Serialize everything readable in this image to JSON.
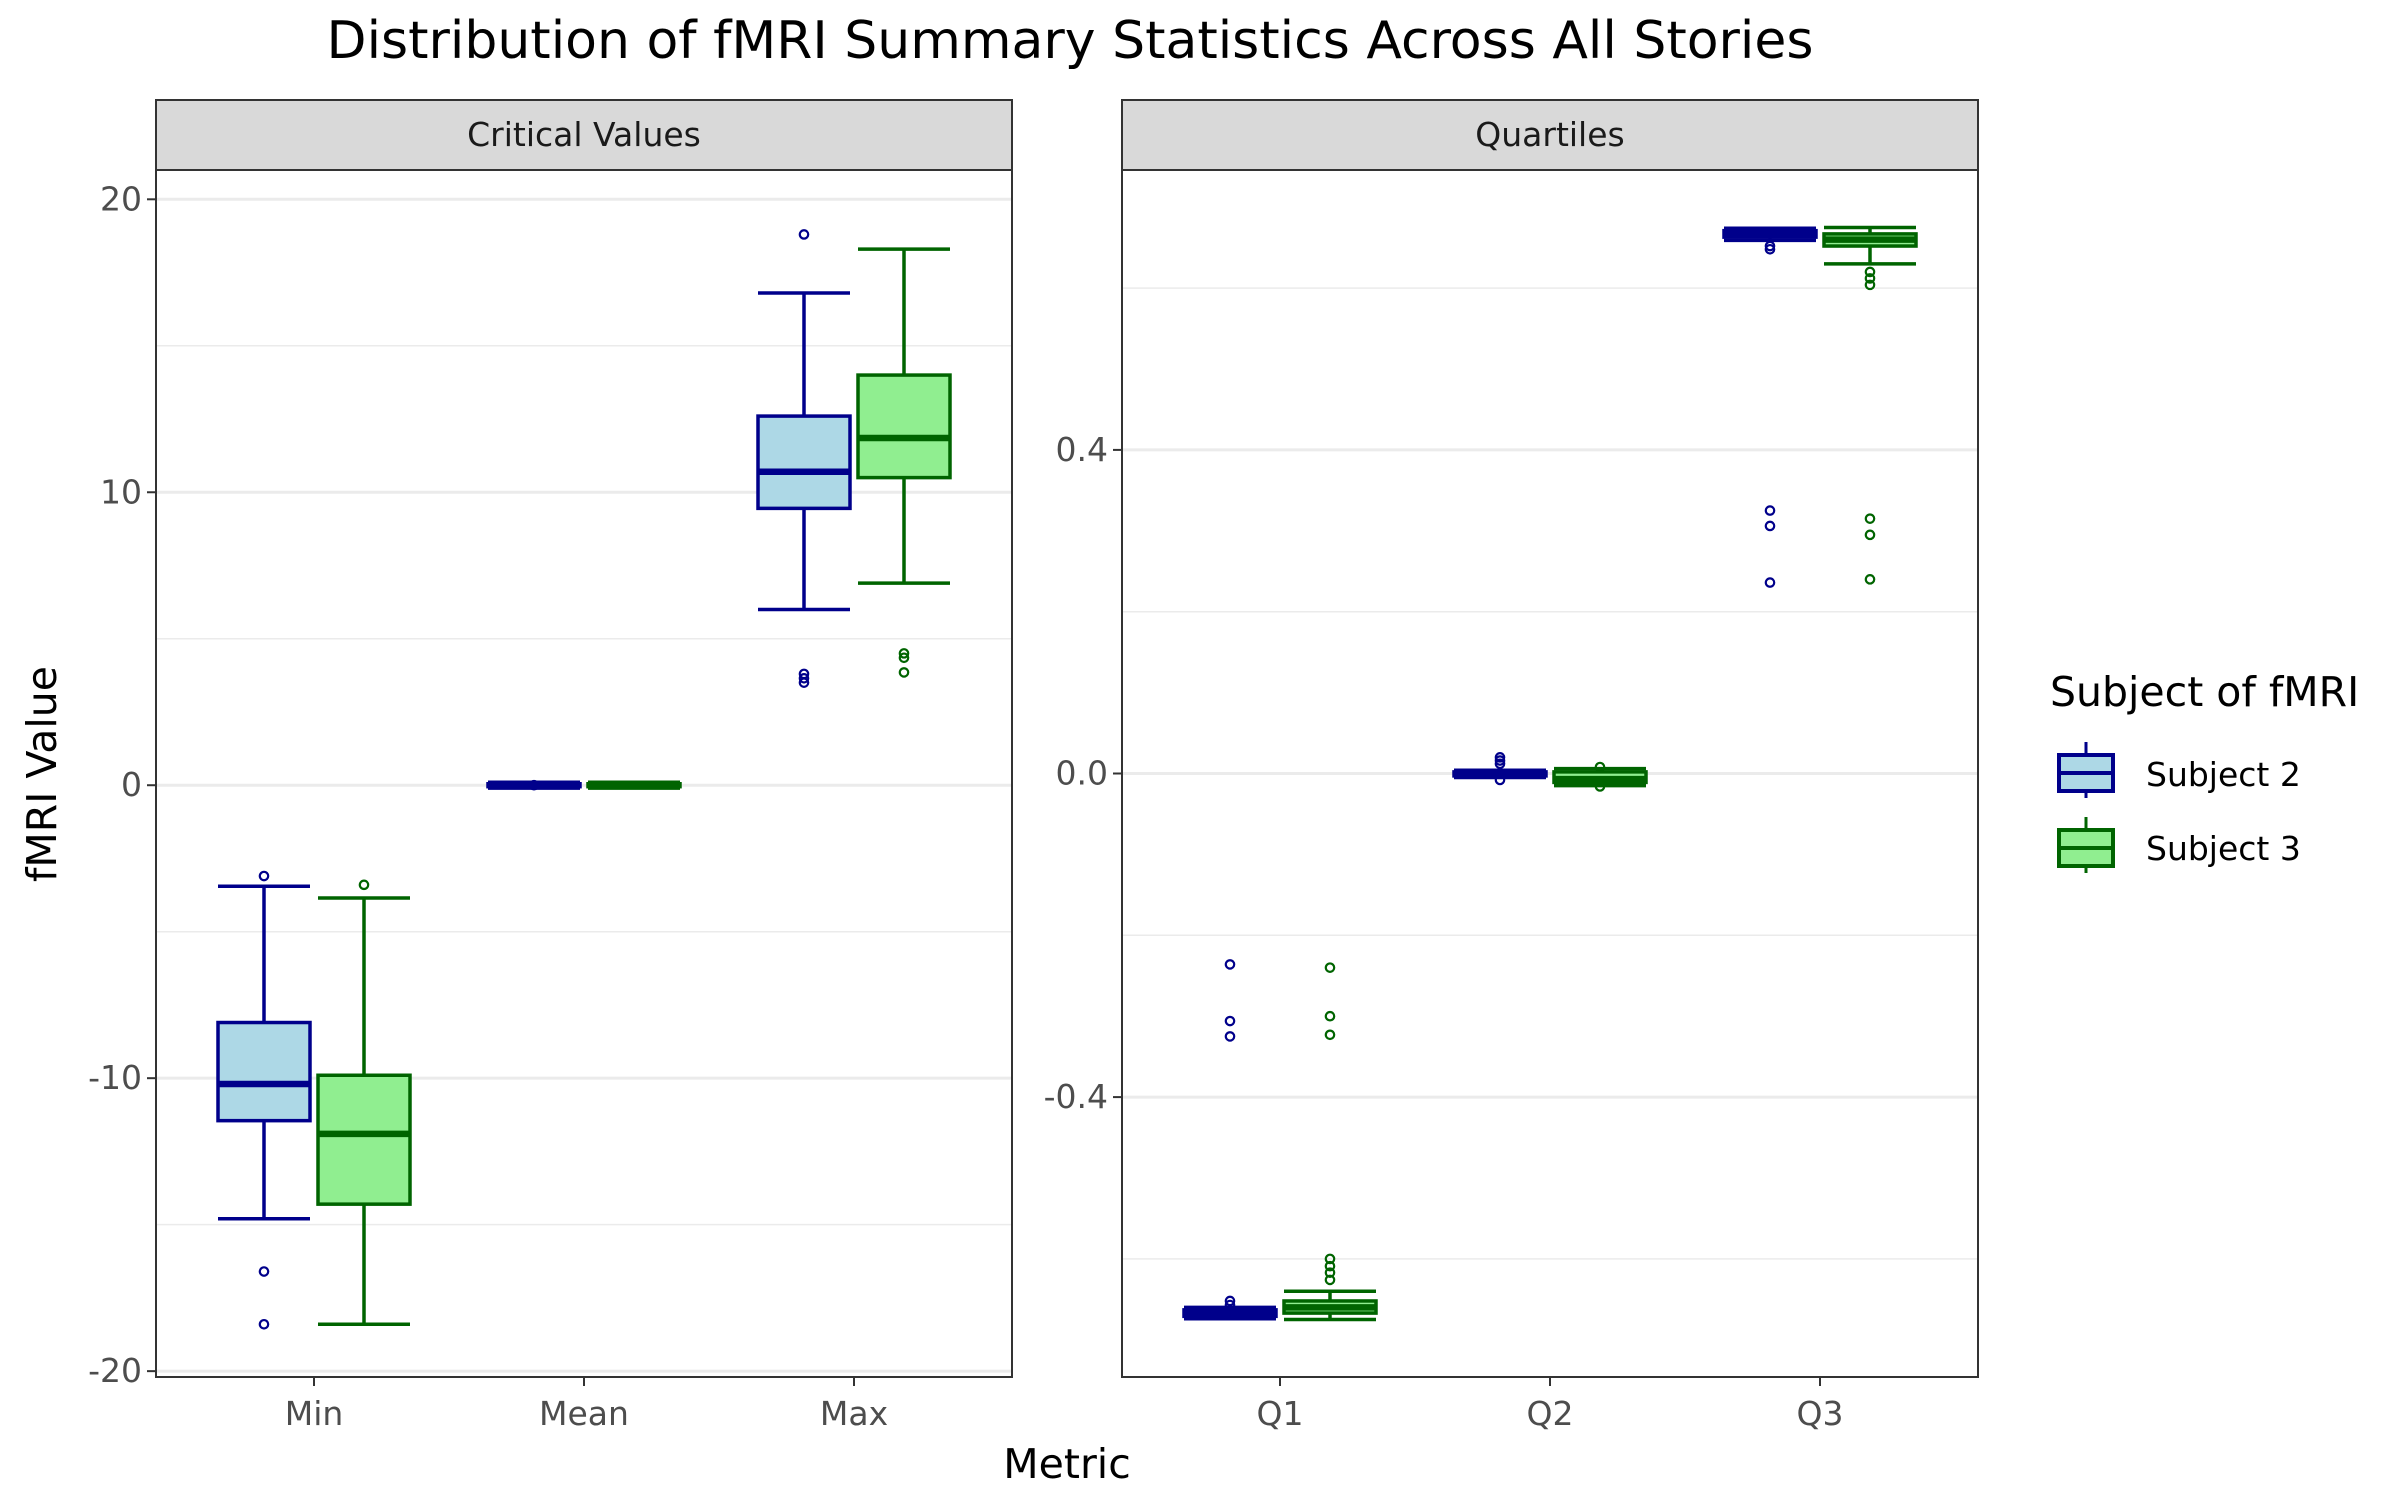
{
  "chart_data": {
    "type": "box",
    "title": "Distribution of fMRI Summary Statistics Across All Stories",
    "xlabel": "Metric",
    "ylabel": "fMRI Value",
    "legend": {
      "title": "Subject of fMRI",
      "position": "right",
      "entries": [
        {
          "name": "Subject 2",
          "fill": "#add8e6",
          "stroke": "#00008b"
        },
        {
          "name": "Subject 3",
          "fill": "#90ee90",
          "stroke": "#006400"
        }
      ]
    },
    "grid": true,
    "panels": [
      {
        "name": "Critical Values",
        "ylim": [
          -20.2,
          21.0
        ],
        "yticks": [
          -20,
          -10,
          0,
          10,
          20
        ],
        "ytick_labels": [
          "-20",
          "-10",
          "0",
          "10",
          "20"
        ],
        "categories": [
          "Min",
          "Mean",
          "Max"
        ],
        "series": [
          {
            "name": "Subject 2",
            "boxes": [
              {
                "category": "Min",
                "lower_whisker": -14.8,
                "q1": -11.45,
                "median": -10.2,
                "q3": -8.1,
                "upper_whisker": -3.45,
                "outliers": [
                  -3.1,
                  -16.6,
                  -18.4
                ]
              },
              {
                "category": "Mean",
                "lower_whisker": -0.1,
                "q1": -0.05,
                "median": 0.0,
                "q3": 0.05,
                "upper_whisker": 0.1,
                "outliers": [
                  0.0
                ]
              },
              {
                "category": "Max",
                "lower_whisker": 6.0,
                "q1": 9.45,
                "median": 10.7,
                "q3": 12.6,
                "upper_whisker": 16.8,
                "outliers": [
                  18.8,
                  3.8,
                  3.65,
                  3.5
                ]
              }
            ]
          },
          {
            "name": "Subject 3",
            "boxes": [
              {
                "category": "Min",
                "lower_whisker": -18.4,
                "q1": -14.3,
                "median": -11.9,
                "q3": -9.9,
                "upper_whisker": -3.85,
                "outliers": [
                  -3.4
                ]
              },
              {
                "category": "Mean",
                "lower_whisker": -0.1,
                "q1": -0.05,
                "median": 0.0,
                "q3": 0.05,
                "upper_whisker": 0.1,
                "outliers": []
              },
              {
                "category": "Max",
                "lower_whisker": 6.9,
                "q1": 10.5,
                "median": 11.85,
                "q3": 14.0,
                "upper_whisker": 18.3,
                "outliers": [
                  4.5,
                  4.35,
                  3.85
                ]
              }
            ]
          }
        ]
      },
      {
        "name": "Quartiles",
        "ylim": [
          -0.746,
          0.746
        ],
        "yticks": [
          -0.4,
          0.0,
          0.4
        ],
        "ytick_labels": [
          "-0.4",
          "0.0",
          "0.4"
        ],
        "categories": [
          "Q1",
          "Q2",
          "Q3"
        ],
        "series": [
          {
            "name": "Subject 2",
            "boxes": [
              {
                "category": "Q1",
                "lower_whisker": -0.674,
                "q1": -0.671,
                "median": -0.667,
                "q3": -0.663,
                "upper_whisker": -0.66,
                "outliers": [
                  -0.236,
                  -0.306,
                  -0.325,
                  -0.652,
                  -0.657
                ]
              },
              {
                "category": "Q2",
                "lower_whisker": -0.005,
                "q1": -0.003,
                "median": -0.001,
                "q3": 0.002,
                "upper_whisker": 0.004,
                "outliers": [
                  0.02,
                  0.016,
                  0.012,
                  -0.008
                ]
              },
              {
                "category": "Q3",
                "lower_whisker": 0.659,
                "q1": 0.663,
                "median": 0.667,
                "q3": 0.671,
                "upper_whisker": 0.674,
                "outliers": [
                  0.325,
                  0.306,
                  0.236,
                  0.652,
                  0.648
                ]
              }
            ]
          },
          {
            "name": "Subject 3",
            "boxes": [
              {
                "category": "Q1",
                "lower_whisker": -0.675,
                "q1": -0.667,
                "median": -0.66,
                "q3": -0.652,
                "upper_whisker": -0.64,
                "outliers": [
                  -0.24,
                  -0.3,
                  -0.323,
                  -0.626,
                  -0.617,
                  -0.609,
                  -0.6
                ]
              },
              {
                "category": "Q2",
                "lower_whisker": -0.015,
                "q1": -0.011,
                "median": -0.007,
                "q3": 0.002,
                "upper_whisker": 0.006,
                "outliers": [
                  0.008,
                  -0.016
                ]
              },
              {
                "category": "Q3",
                "lower_whisker": 0.63,
                "q1": 0.652,
                "median": 0.66,
                "q3": 0.667,
                "upper_whisker": 0.675,
                "outliers": [
                  0.315,
                  0.295,
                  0.24,
                  0.62,
                  0.612,
                  0.604
                ]
              }
            ]
          }
        ]
      }
    ]
  }
}
